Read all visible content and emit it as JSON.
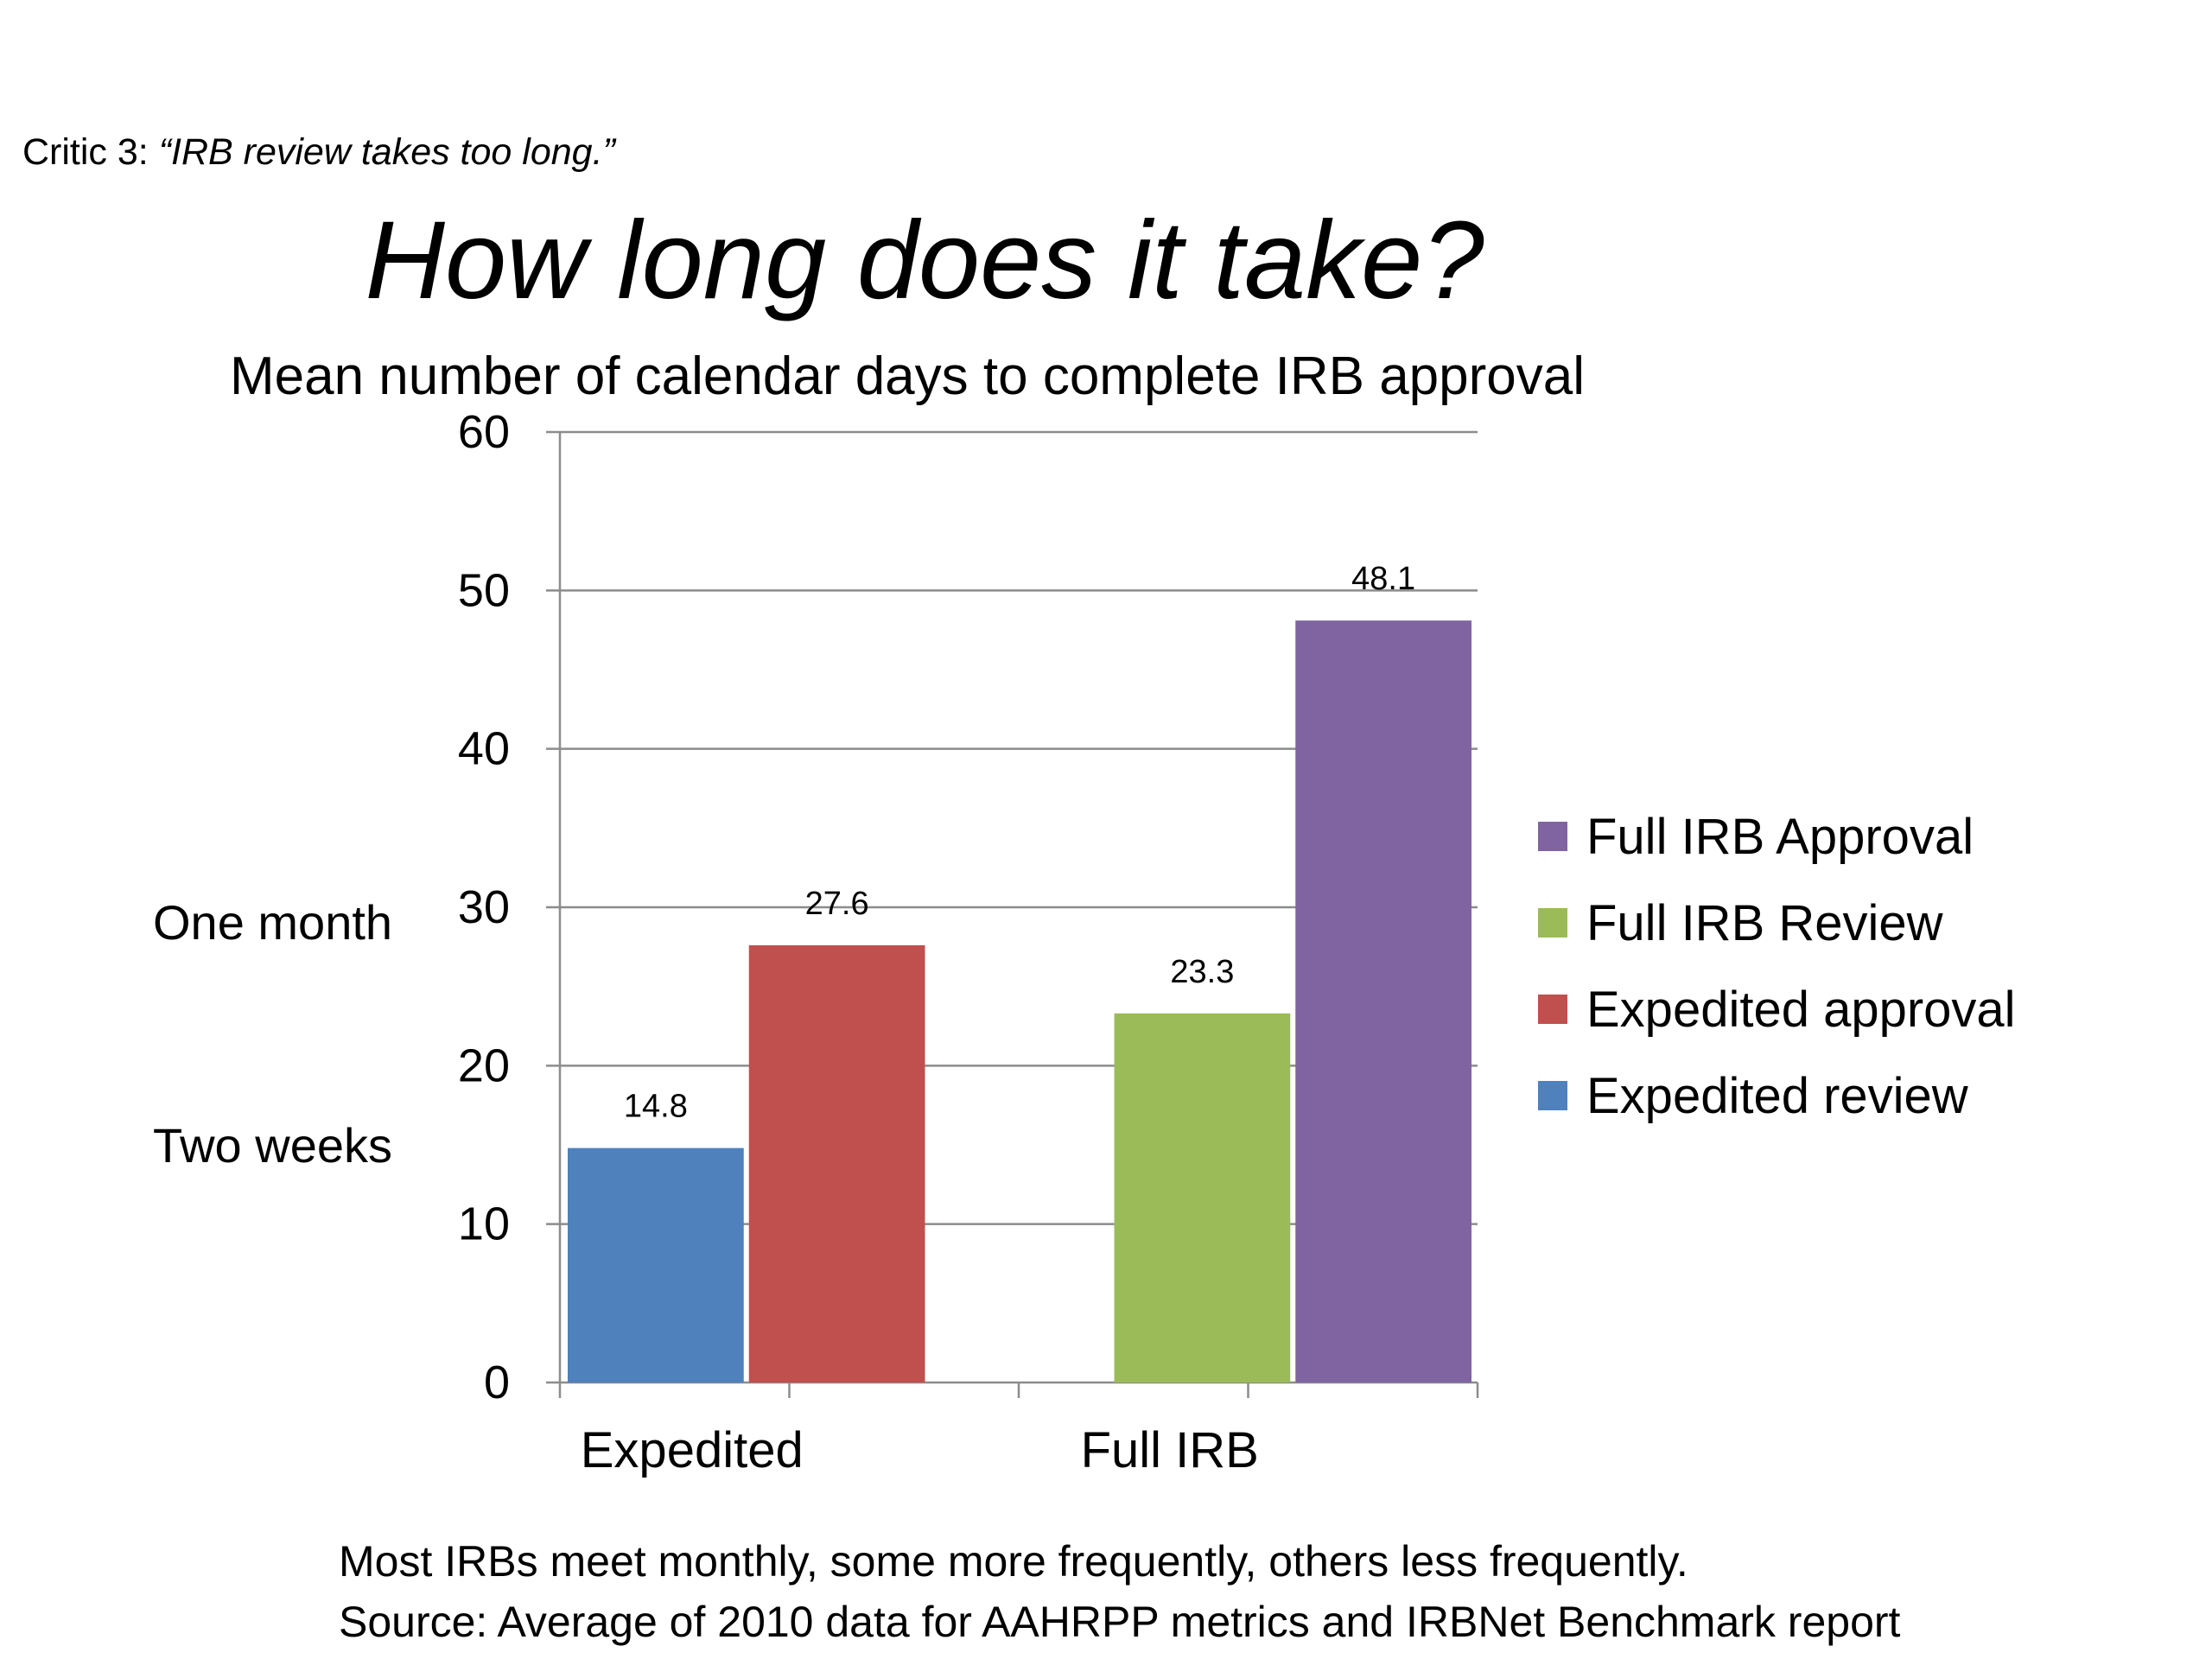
{
  "slide": {
    "critic_label": "Critic 3: ",
    "critic_quote": "“IRB review takes too long.”",
    "title": "How long does it take?",
    "note_one_month": "One month",
    "note_two_weeks": "Two weeks",
    "footer_line1": "Most IRBs meet monthly, some more frequently, others less frequently.",
    "footer_line2": "Source: Average of 2010 data for AAHRPP metrics and IRBNet  Benchmark report"
  },
  "chart_data": {
    "type": "bar",
    "title": "Mean number of calendar days to complete IRB approval",
    "xlabel": "",
    "ylabel": "",
    "ylim": [
      0,
      60
    ],
    "yticks": [
      0,
      10,
      20,
      30,
      40,
      50,
      60
    ],
    "grid": true,
    "legend_position": "right",
    "categories": [
      "Expedited",
      "Full IRB"
    ],
    "series": [
      {
        "name": "Expedited review",
        "color": "#4F81BD",
        "category": "Expedited",
        "value": 14.8,
        "label": "14.8"
      },
      {
        "name": "Expedited approval",
        "color": "#C0504D",
        "category": "Expedited",
        "value": 27.6,
        "label": "27.6"
      },
      {
        "name": "Full IRB Review",
        "color": "#9BBB59",
        "category": "Full IRB",
        "value": 23.3,
        "label": "23.3"
      },
      {
        "name": "Full IRB Approval",
        "color": "#8064A2",
        "category": "Full IRB",
        "value": 48.1,
        "label": "48.1"
      }
    ],
    "legend_order": [
      "Full IRB Approval",
      "Full IRB Review",
      "Expedited approval",
      "Expedited review"
    ]
  }
}
